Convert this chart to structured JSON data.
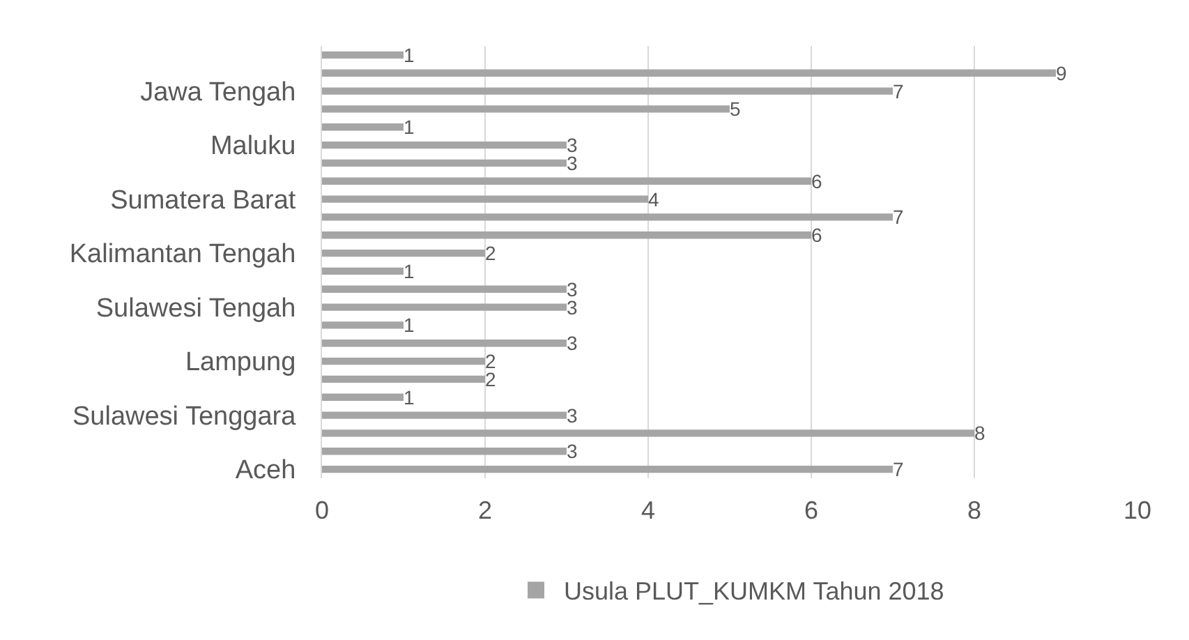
{
  "chart_data": {
    "type": "bar",
    "orientation": "horizontal",
    "categories": [
      null,
      null,
      "Jawa Tengah",
      null,
      null,
      "Maluku",
      null,
      null,
      "Sumatera Barat",
      null,
      null,
      "Kalimantan Tengah",
      null,
      null,
      "Sulawesi Tengah",
      null,
      null,
      "Lampung",
      null,
      null,
      "Sulawesi Tenggara",
      null,
      null,
      "Aceh"
    ],
    "series": [
      {
        "name": "Usula PLUT_KUMKM Tahun 2018",
        "color": "#a5a5a5",
        "values": [
          1,
          9,
          7,
          5,
          1,
          3,
          3,
          6,
          4,
          7,
          6,
          2,
          1,
          3,
          3,
          1,
          3,
          2,
          2,
          1,
          3,
          8,
          3,
          7
        ]
      }
    ],
    "xlim": [
      0,
      10
    ],
    "xticks": [
      0,
      2,
      4,
      6,
      8,
      10
    ],
    "grid": "x",
    "data_labels": true,
    "legend": "bottom"
  }
}
